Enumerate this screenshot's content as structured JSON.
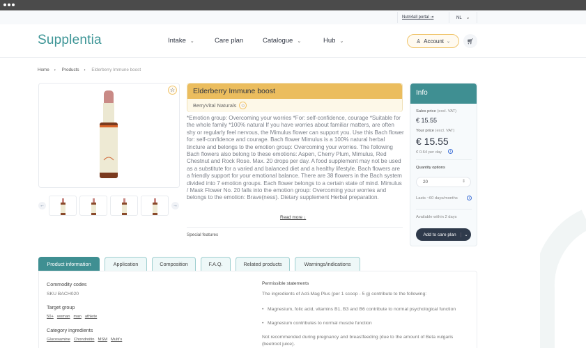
{
  "topbar": {
    "portal": "Nutri4all portal",
    "language": "NL"
  },
  "header": {
    "logo": "Supplentia",
    "nav": [
      {
        "label": "Intake"
      },
      {
        "label": "Care plan"
      },
      {
        "label": "Catalogue"
      },
      {
        "label": "Hub"
      }
    ],
    "account": "Account"
  },
  "breadcrumb": [
    "Home",
    "Products",
    "Elderberry Immune boost"
  ],
  "product": {
    "title": "Elderberry Immune boost",
    "brand": "BerryVital Naturals",
    "description": "*Emotion group: Overcoming your worries *For: self-confidence, courage *Suitable for the whole family *100% natural If you have worries about familiar matters, are often shy or regularly feel nervous, the Mimulus flower can support you. Use this Bach flower for: self-confidence and courage. Bach flower Mimulus is a 100% natural herbal tincture and belongs to the emotion group: Overcoming your worries. The following Bach flowers also belong to these emotions: Aspen, Cherry Plum, Mimulus, Red Chestnut and Rock Rose. Max. 20 drops per day. A food supplement may not be used as a substitute for a varied and balanced diet and a healthy lifestyle. Bach flowers are a friendly support for your emotional balance. There are 38 flowers in the Bach system divided into 7 emotion groups. Each flower belongs to a certain state of mind. Mimulus / Mask Flower No. 20 falls into the emotion group: Overcoming your worries and belongs to the emotion: Brave(ness). Dietary supplement Herbal preparation.",
    "read_more": "Read more",
    "special_features": "Special features"
  },
  "info": {
    "title": "Info",
    "sales_price_label": "Sales price",
    "excl_vat": "(excl. VAT)",
    "sales_price": "€ 15.55",
    "your_price_label": "Your price",
    "your_price": "€ 15.55",
    "per_day": "€ 0.64 per day",
    "quantity_label": "Quantity options",
    "quantity": "20",
    "lasts": "Lasts  ~60 days/months",
    "availability": "Available within 2 days",
    "add_button": "Add to care plan"
  },
  "tabs": [
    {
      "label": "Product information",
      "active": true
    },
    {
      "label": "Application"
    },
    {
      "label": "Composition"
    },
    {
      "label": "F.A.Q."
    },
    {
      "label": "Related products"
    },
    {
      "label": "Warnings/indications"
    }
  ],
  "details": {
    "commodity_label": "Commodity codes",
    "sku": "SKU BACH020",
    "target_label": "Target group",
    "target_tags": [
      "50+",
      "woman",
      "man",
      "athlete"
    ],
    "category_label": "Category ingredients",
    "category_tags": [
      "Glucosamine",
      "Chondroitin",
      "MSM",
      "Multi's"
    ],
    "statements_label": "Permissible statements",
    "statements_intro": "The ingredients of Acti-Mag Plus (per 1 scoop - 5 g) contribute to the following:",
    "statements": [
      "Magnesium, folic acid, vitamins B1, B3 and B6 contribute to normal psychological function",
      "Magnesium contributes to normal muscle function"
    ],
    "warning": "Not recommended during pregnancy and breastfeeding (due to the amount of Beta vulgaris (beetroot juice)."
  },
  "colors": {
    "brand": "#3f8f92",
    "title_bg": "#ebbd5e",
    "dark_button": "#2f3a4b"
  }
}
